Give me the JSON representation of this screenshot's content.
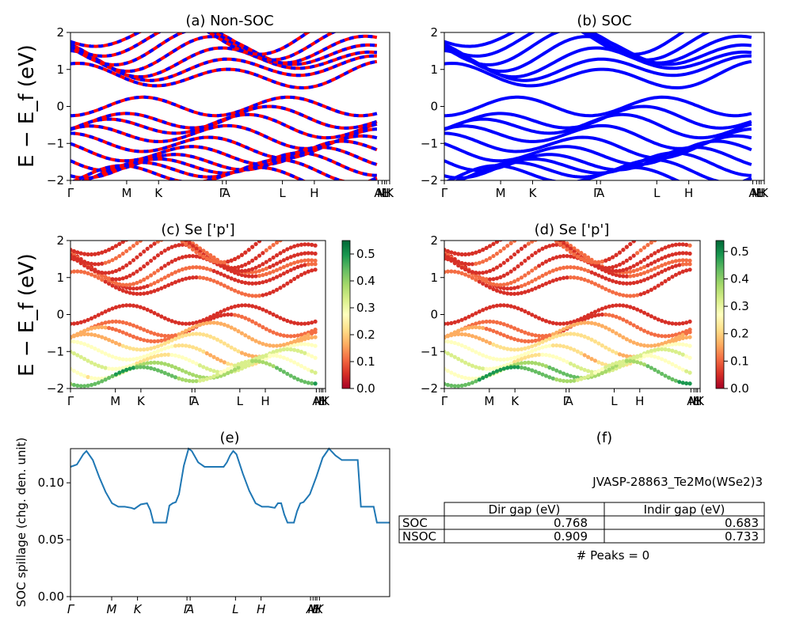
{
  "chart_data": [
    {
      "id": "a",
      "type": "line",
      "title": "(a) Non-SOC",
      "ylabel": "E − E_f (eV)",
      "ylim": [
        -2,
        2
      ],
      "yticks": [
        "2",
        "1",
        "0",
        "−1",
        "−2"
      ],
      "kpoints": [
        "Γ",
        "M",
        "K",
        "Γ",
        "A",
        "L",
        "H",
        "A",
        "M",
        "L",
        "H",
        "K"
      ],
      "kpos": [
        0,
        0.176,
        0.276,
        0.476,
        0.488,
        0.664,
        0.764,
        0.964,
        0.976,
        0.984,
        0.99,
        1.0
      ],
      "colors": {
        "up": "#ff0000",
        "down": "#0000ff"
      }
    },
    {
      "id": "b",
      "type": "line",
      "title": "(b) SOC",
      "ylim": [
        -2,
        2
      ],
      "yticks": [
        "2",
        "1",
        "0",
        "−1",
        "−2"
      ],
      "kpoints": [
        "Γ",
        "M",
        "K",
        "Γ",
        "A",
        "L",
        "H",
        "A",
        "M",
        "L",
        "H",
        "K"
      ],
      "kpos": [
        0,
        0.176,
        0.276,
        0.476,
        0.488,
        0.664,
        0.764,
        0.964,
        0.976,
        0.984,
        0.99,
        1.0
      ],
      "colors": {
        "bands": "#0000ff"
      }
    },
    {
      "id": "c",
      "type": "scatter",
      "title": "(c)  Se ['p']",
      "ylabel": "E − E_f (eV)",
      "ylim": [
        -2,
        2
      ],
      "yticks": [
        "2",
        "1",
        "0",
        "−1",
        "−2"
      ],
      "kpoints": [
        "Γ",
        "M",
        "K",
        "Γ",
        "A",
        "L",
        "H",
        "A",
        "M",
        "L",
        "H",
        "K"
      ],
      "kpos": [
        0,
        0.176,
        0.276,
        0.476,
        0.488,
        0.664,
        0.764,
        0.964,
        0.976,
        0.984,
        0.99,
        1.0
      ],
      "colorbar": {
        "min": 0.0,
        "max": 0.55,
        "ticks": [
          "0.0",
          "0.1",
          "0.2",
          "0.3",
          "0.4",
          "0.5"
        ],
        "tickvals": [
          0,
          0.1,
          0.2,
          0.3,
          0.4,
          0.5
        ],
        "colormap": "RdYlGn"
      }
    },
    {
      "id": "d",
      "type": "scatter",
      "title": "(d) Se ['p']",
      "ylim": [
        -2,
        2
      ],
      "yticks": [
        "2",
        "1",
        "0",
        "−1",
        "−2"
      ],
      "kpoints": [
        "Γ",
        "M",
        "K",
        "Γ",
        "A",
        "L",
        "H",
        "A",
        "M",
        "L",
        "H",
        "K"
      ],
      "kpos": [
        0,
        0.176,
        0.276,
        0.476,
        0.488,
        0.664,
        0.764,
        0.964,
        0.976,
        0.984,
        0.99,
        1.0
      ],
      "colorbar": {
        "min": 0.0,
        "max": 0.54,
        "ticks": [
          "0.0",
          "0.1",
          "0.2",
          "0.3",
          "0.4",
          "0.5"
        ],
        "tickvals": [
          0,
          0.1,
          0.2,
          0.3,
          0.4,
          0.5
        ],
        "colormap": "RdYlGn"
      }
    },
    {
      "id": "e",
      "type": "line",
      "title": "(e)",
      "ylabel": "SOC spillage (chg. den. unit)",
      "ylim": [
        0,
        0.13
      ],
      "yticks": [
        0.0,
        0.05,
        0.1
      ],
      "ytick_labels": [
        "0.00",
        "0.05",
        "0.10"
      ],
      "kpoints": [
        "Γ",
        "M",
        "K",
        "Γ",
        "A",
        "L",
        "H",
        "A",
        "M",
        "L",
        "H",
        "K"
      ],
      "kpos": [
        0,
        0.129,
        0.21,
        0.365,
        0.375,
        0.517,
        0.597,
        0.752,
        0.76,
        0.767,
        0.772,
        0.78
      ],
      "series": [
        {
          "color": "#1f77b4",
          "x": [
            0,
            0.02,
            0.04,
            0.05,
            0.07,
            0.09,
            0.11,
            0.13,
            0.15,
            0.17,
            0.19,
            0.2,
            0.22,
            0.24,
            0.25,
            0.26,
            0.27,
            0.28,
            0.3,
            0.31,
            0.32,
            0.33,
            0.34,
            0.355,
            0.37,
            0.38,
            0.4,
            0.42,
            0.44,
            0.46,
            0.48,
            0.49,
            0.5,
            0.51,
            0.52,
            0.54,
            0.56,
            0.58,
            0.6,
            0.62,
            0.64,
            0.65,
            0.66,
            0.67,
            0.68,
            0.7,
            0.71,
            0.72,
            0.73,
            0.75,
            0.77,
            0.79,
            0.81,
            0.83,
            0.85,
            0.88,
            0.9,
            0.91,
            0.93,
            0.95,
            0.96,
            1.0
          ],
          "y": [
            0.114,
            0.116,
            0.125,
            0.128,
            0.12,
            0.105,
            0.092,
            0.082,
            0.079,
            0.079,
            0.078,
            0.077,
            0.081,
            0.082,
            0.076,
            0.065,
            0.065,
            0.065,
            0.065,
            0.08,
            0.082,
            0.083,
            0.09,
            0.115,
            0.13,
            0.128,
            0.118,
            0.114,
            0.114,
            0.114,
            0.114,
            0.118,
            0.124,
            0.128,
            0.125,
            0.108,
            0.093,
            0.082,
            0.079,
            0.079,
            0.078,
            0.082,
            0.082,
            0.072,
            0.065,
            0.065,
            0.075,
            0.082,
            0.083,
            0.09,
            0.105,
            0.122,
            0.13,
            0.124,
            0.12,
            0.12,
            0.12,
            0.079,
            0.079,
            0.079,
            0.065,
            0.065
          ]
        }
      ]
    }
  ],
  "panel_f": {
    "label": "(f)",
    "id_text": "JVASP-28863_Te2Mo(WSe2)3",
    "headers": [
      "",
      "Dir gap (eV)",
      "Indir gap (eV)"
    ],
    "rows": [
      {
        "name": "SOC",
        "dir": "0.768",
        "indir": "0.683"
      },
      {
        "name": "NSOC",
        "dir": "0.909",
        "indir": "0.733"
      }
    ],
    "peaks": "# Peaks = 0"
  }
}
